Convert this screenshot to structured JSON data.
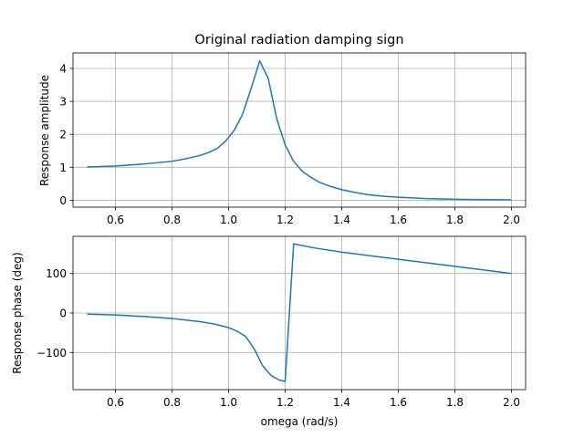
{
  "chart_data": [
    {
      "type": "line",
      "title": "Original radiation damping sign",
      "xlabel": "",
      "ylabel": "Response amplitude",
      "xlim": [
        0.45,
        2.05
      ],
      "ylim": [
        -0.21,
        4.47
      ],
      "xticks": [
        0.6,
        0.8,
        1.0,
        1.2,
        1.4,
        1.6,
        1.8,
        2.0
      ],
      "xtick_labels": [
        "0.6",
        "0.8",
        "1.0",
        "1.2",
        "1.4",
        "1.6",
        "1.8",
        "2.0"
      ],
      "yticks": [
        0,
        1,
        2,
        3,
        4
      ],
      "ytick_labels": [
        "0",
        "1",
        "2",
        "3",
        "4"
      ],
      "grid": true,
      "line_color": "#1f77b4",
      "series": [
        {
          "x": [
            0.5,
            0.6,
            0.7,
            0.8,
            0.85,
            0.9,
            0.93,
            0.96,
            0.99,
            1.02,
            1.05,
            1.08,
            1.11,
            1.14,
            1.17,
            1.2,
            1.23,
            1.26,
            1.29,
            1.32,
            1.36,
            1.4,
            1.45,
            1.5,
            1.55,
            1.6,
            1.7,
            1.8,
            1.9,
            2.0
          ],
          "y": [
            1.01,
            1.04,
            1.1,
            1.18,
            1.26,
            1.36,
            1.45,
            1.57,
            1.8,
            2.12,
            2.62,
            3.4,
            4.23,
            3.7,
            2.48,
            1.68,
            1.18,
            0.88,
            0.7,
            0.55,
            0.42,
            0.32,
            0.23,
            0.16,
            0.12,
            0.09,
            0.05,
            0.03,
            0.02,
            0.01
          ]
        }
      ]
    },
    {
      "type": "line",
      "title": "",
      "xlabel": "omega (rad/s)",
      "ylabel": "Response phase (deg)",
      "xlim": [
        0.45,
        2.05
      ],
      "ylim": [
        -194,
        194
      ],
      "xticks": [
        0.6,
        0.8,
        1.0,
        1.2,
        1.4,
        1.6,
        1.8,
        2.0
      ],
      "xtick_labels": [
        "0.6",
        "0.8",
        "1.0",
        "1.2",
        "1.4",
        "1.6",
        "1.8",
        "2.0"
      ],
      "yticks": [
        -100,
        0,
        100
      ],
      "ytick_labels": [
        "−100",
        "0",
        "100"
      ],
      "grid": true,
      "line_color": "#1f77b4",
      "series": [
        {
          "x": [
            0.5,
            0.6,
            0.7,
            0.8,
            0.85,
            0.9,
            0.95,
            1.0,
            1.03,
            1.06,
            1.09,
            1.12,
            1.15,
            1.18,
            1.2,
            1.23,
            1.3,
            1.4,
            1.5,
            1.6,
            1.7,
            1.8,
            1.9,
            2.0
          ],
          "y": [
            -3,
            -5,
            -9,
            -14,
            -18,
            -22,
            -28,
            -37,
            -46,
            -59,
            -90,
            -133,
            -158,
            -170,
            -173,
            175,
            165,
            154,
            145,
            136,
            127,
            118,
            109,
            100
          ]
        }
      ]
    }
  ]
}
